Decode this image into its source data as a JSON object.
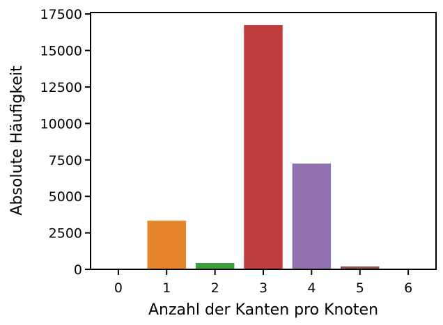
{
  "chart_data": {
    "type": "bar",
    "categories": [
      "0",
      "1",
      "2",
      "3",
      "4",
      "5",
      "6"
    ],
    "values": [
      10,
      3330,
      430,
      16740,
      7250,
      200,
      10
    ],
    "colors": [
      "#1f77b4",
      "#e6842a",
      "#3c9f3c",
      "#c03d3e",
      "#9372b2",
      "#8c564b",
      "#e377c2"
    ],
    "xlabel": "Anzahl der Kanten pro Knoten",
    "ylabel": "Absolute Häufigkeit",
    "ylim": [
      0,
      17600
    ],
    "yticks": [
      0,
      2500,
      5000,
      7500,
      10000,
      12500,
      15000,
      17500
    ],
    "grid": false,
    "legend": "none"
  }
}
